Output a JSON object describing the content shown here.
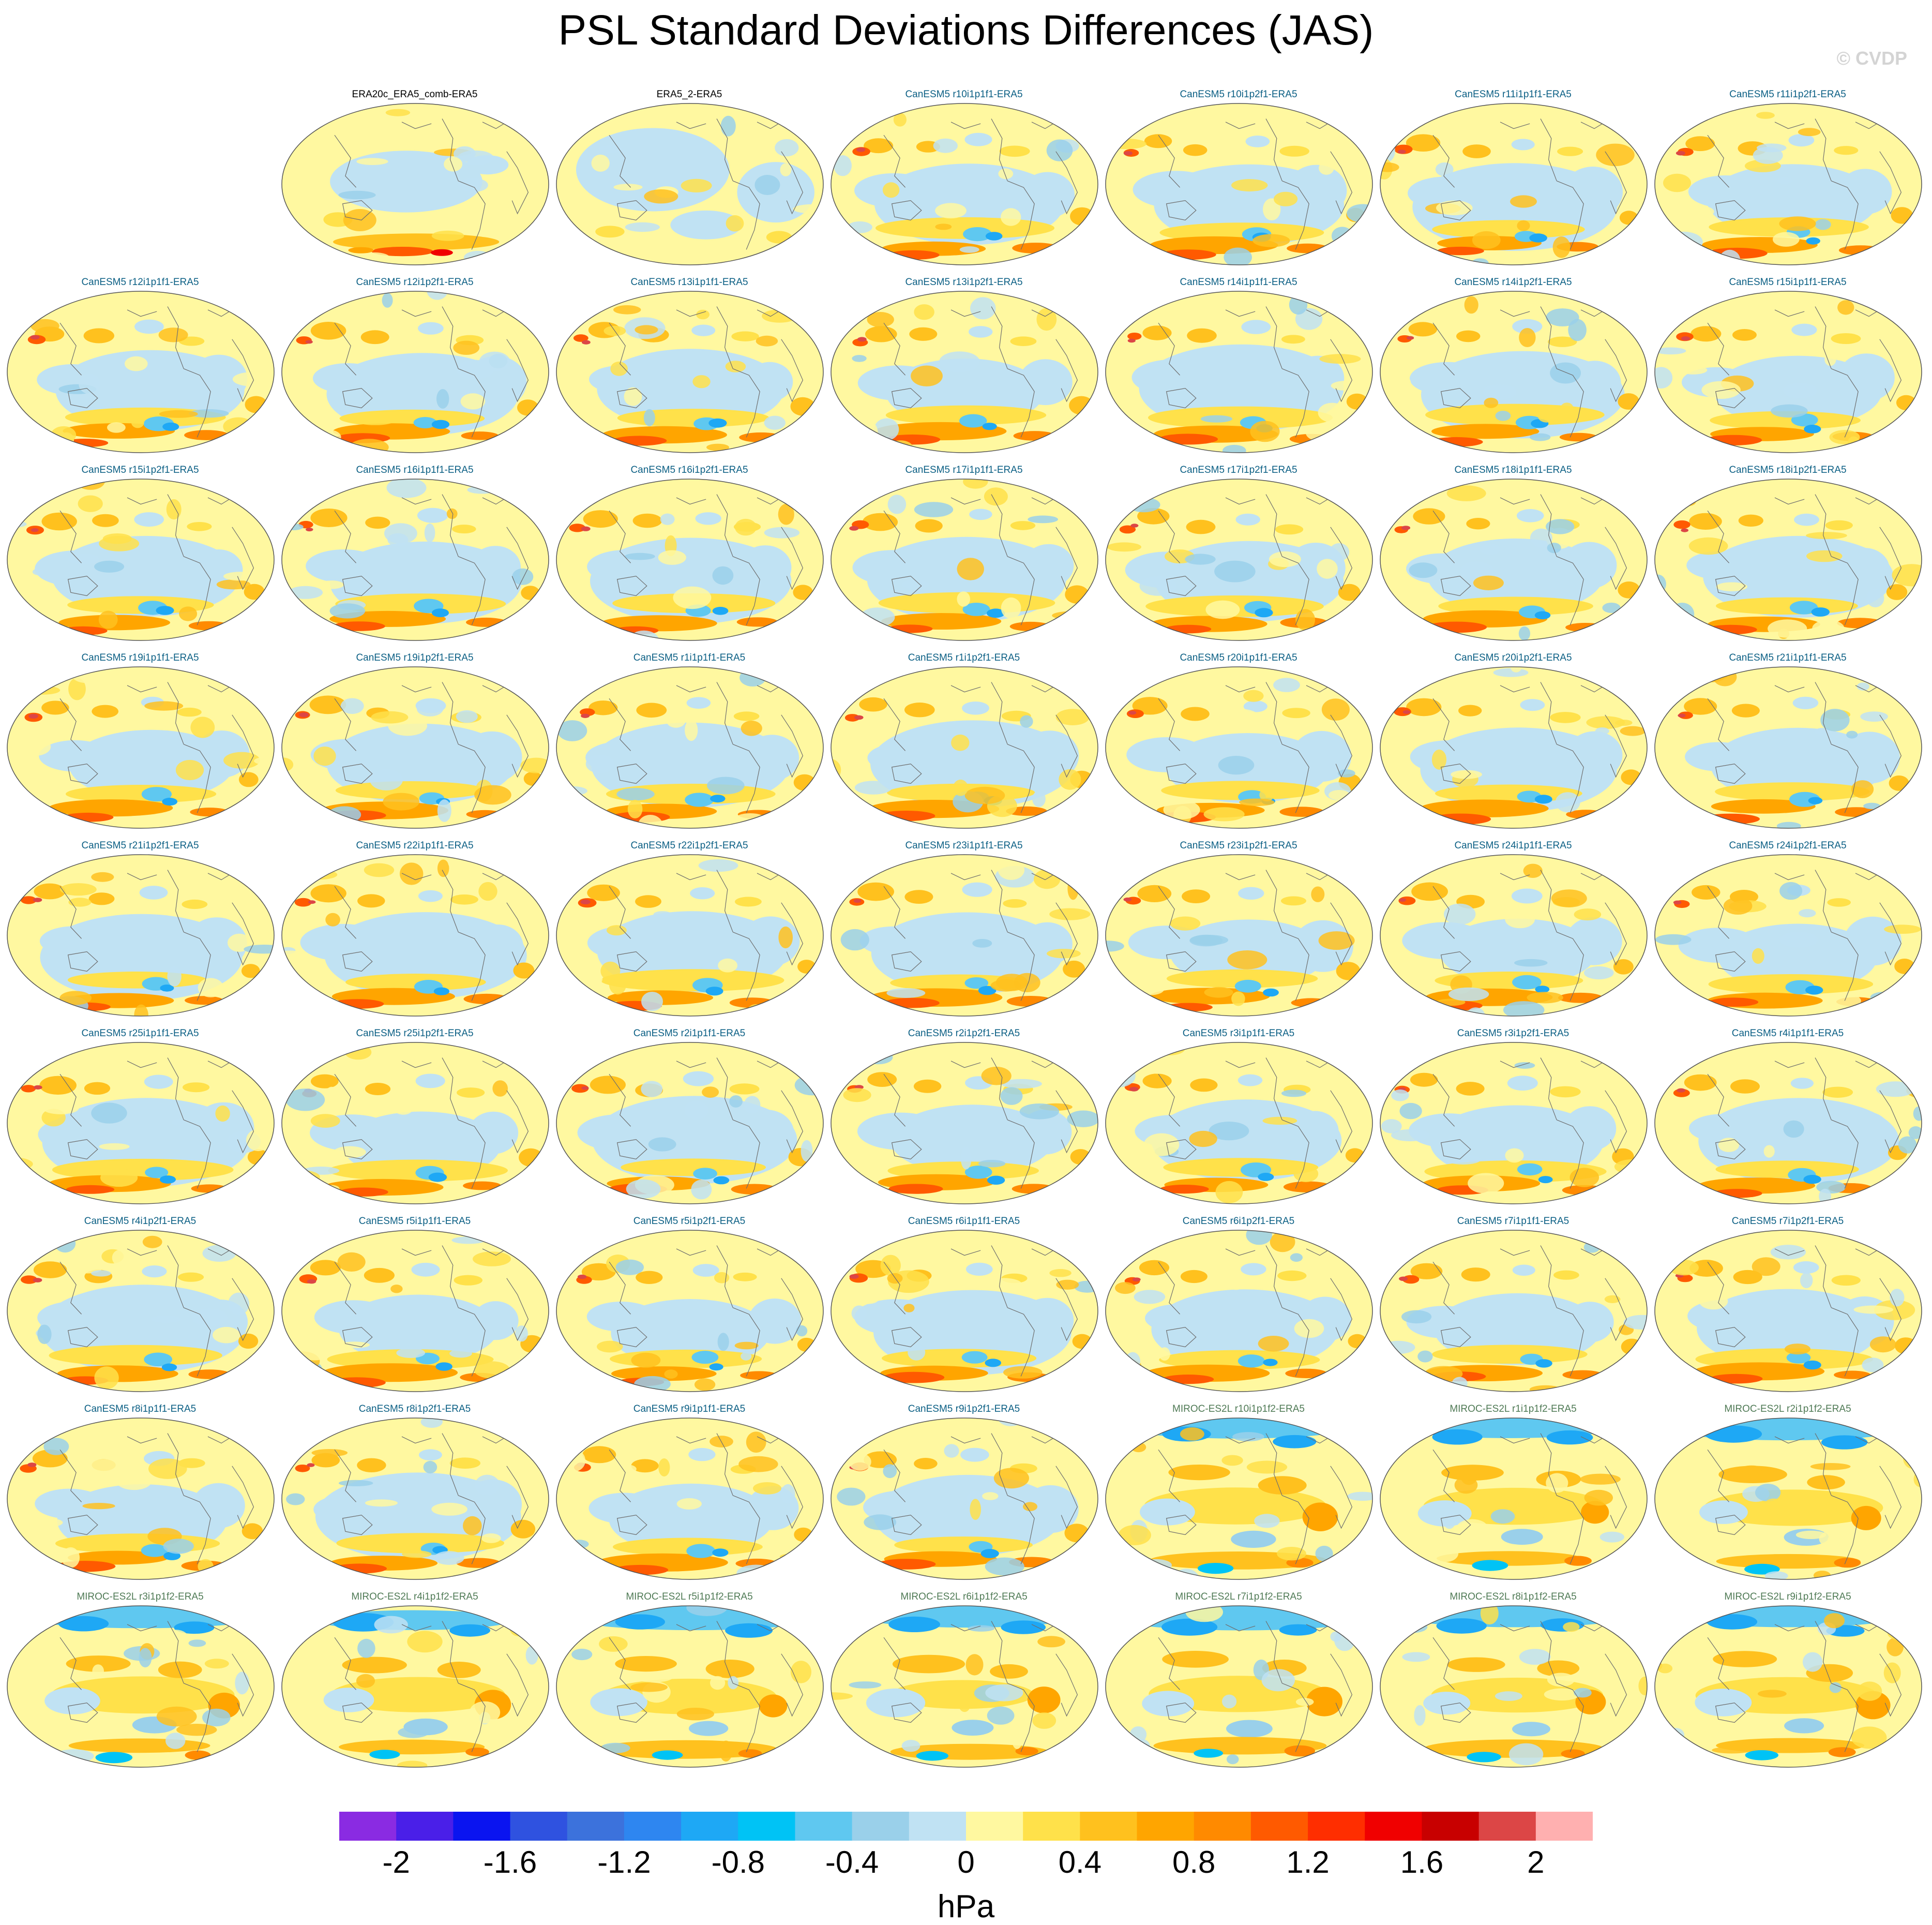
{
  "title": "PSL Standard Deviations Differences (JAS)",
  "credit": "© CVDP",
  "colors": {
    "obs_title": "#000000",
    "canesm_title": "#0b5f84",
    "miroc_title": "#4f7a55",
    "map_outline": "#555555",
    "coastline": "#6e6e6e"
  },
  "panels": [
    {
      "label": "ERA20c_ERA5_comb-ERA5",
      "group": "obs",
      "pattern": "era20c"
    },
    {
      "label": "ERA5_2-ERA5",
      "group": "obs",
      "pattern": "era5"
    },
    {
      "label": "CanESM5 r10i1p1f1-ERA5",
      "group": "canesm",
      "pattern": "canesm"
    },
    {
      "label": "CanESM5 r10i1p2f1-ERA5",
      "group": "canesm",
      "pattern": "canesm"
    },
    {
      "label": "CanESM5 r11i1p1f1-ERA5",
      "group": "canesm",
      "pattern": "canesm"
    },
    {
      "label": "CanESM5 r11i1p2f1-ERA5",
      "group": "canesm",
      "pattern": "canesm"
    },
    {
      "label": "CanESM5 r12i1p1f1-ERA5",
      "group": "canesm",
      "pattern": "canesm"
    },
    {
      "label": "CanESM5 r12i1p2f1-ERA5",
      "group": "canesm",
      "pattern": "canesm"
    },
    {
      "label": "CanESM5 r13i1p1f1-ERA5",
      "group": "canesm",
      "pattern": "canesm"
    },
    {
      "label": "CanESM5 r13i1p2f1-ERA5",
      "group": "canesm",
      "pattern": "canesm"
    },
    {
      "label": "CanESM5 r14i1p1f1-ERA5",
      "group": "canesm",
      "pattern": "canesm"
    },
    {
      "label": "CanESM5 r14i1p2f1-ERA5",
      "group": "canesm",
      "pattern": "canesm"
    },
    {
      "label": "CanESM5 r15i1p1f1-ERA5",
      "group": "canesm",
      "pattern": "canesm"
    },
    {
      "label": "CanESM5 r15i1p2f1-ERA5",
      "group": "canesm",
      "pattern": "canesm"
    },
    {
      "label": "CanESM5 r16i1p1f1-ERA5",
      "group": "canesm",
      "pattern": "canesm"
    },
    {
      "label": "CanESM5 r16i1p2f1-ERA5",
      "group": "canesm",
      "pattern": "canesm"
    },
    {
      "label": "CanESM5 r17i1p1f1-ERA5",
      "group": "canesm",
      "pattern": "canesm"
    },
    {
      "label": "CanESM5 r17i1p2f1-ERA5",
      "group": "canesm",
      "pattern": "canesm"
    },
    {
      "label": "CanESM5 r18i1p1f1-ERA5",
      "group": "canesm",
      "pattern": "canesm"
    },
    {
      "label": "CanESM5 r18i1p2f1-ERA5",
      "group": "canesm",
      "pattern": "canesm"
    },
    {
      "label": "CanESM5 r19i1p1f1-ERA5",
      "group": "canesm",
      "pattern": "canesm"
    },
    {
      "label": "CanESM5 r19i1p2f1-ERA5",
      "group": "canesm",
      "pattern": "canesm"
    },
    {
      "label": "CanESM5 r1i1p1f1-ERA5",
      "group": "canesm",
      "pattern": "canesm"
    },
    {
      "label": "CanESM5 r1i1p2f1-ERA5",
      "group": "canesm",
      "pattern": "canesm"
    },
    {
      "label": "CanESM5 r20i1p1f1-ERA5",
      "group": "canesm",
      "pattern": "canesm"
    },
    {
      "label": "CanESM5 r20i1p2f1-ERA5",
      "group": "canesm",
      "pattern": "canesm"
    },
    {
      "label": "CanESM5 r21i1p1f1-ERA5",
      "group": "canesm",
      "pattern": "canesm"
    },
    {
      "label": "CanESM5 r21i1p2f1-ERA5",
      "group": "canesm",
      "pattern": "canesm"
    },
    {
      "label": "CanESM5 r22i1p1f1-ERA5",
      "group": "canesm",
      "pattern": "canesm"
    },
    {
      "label": "CanESM5 r22i1p2f1-ERA5",
      "group": "canesm",
      "pattern": "canesm"
    },
    {
      "label": "CanESM5 r23i1p1f1-ERA5",
      "group": "canesm",
      "pattern": "canesm"
    },
    {
      "label": "CanESM5 r23i1p2f1-ERA5",
      "group": "canesm",
      "pattern": "canesm"
    },
    {
      "label": "CanESM5 r24i1p1f1-ERA5",
      "group": "canesm",
      "pattern": "canesm"
    },
    {
      "label": "CanESM5 r24i1p2f1-ERA5",
      "group": "canesm",
      "pattern": "canesm"
    },
    {
      "label": "CanESM5 r25i1p1f1-ERA5",
      "group": "canesm",
      "pattern": "canesm"
    },
    {
      "label": "CanESM5 r25i1p2f1-ERA5",
      "group": "canesm",
      "pattern": "canesm"
    },
    {
      "label": "CanESM5 r2i1p1f1-ERA5",
      "group": "canesm",
      "pattern": "canesm"
    },
    {
      "label": "CanESM5 r2i1p2f1-ERA5",
      "group": "canesm",
      "pattern": "canesm"
    },
    {
      "label": "CanESM5 r3i1p1f1-ERA5",
      "group": "canesm",
      "pattern": "canesm"
    },
    {
      "label": "CanESM5 r3i1p2f1-ERA5",
      "group": "canesm",
      "pattern": "canesm"
    },
    {
      "label": "CanESM5 r4i1p1f1-ERA5",
      "group": "canesm",
      "pattern": "canesm"
    },
    {
      "label": "CanESM5 r4i1p2f1-ERA5",
      "group": "canesm",
      "pattern": "canesm"
    },
    {
      "label": "CanESM5 r5i1p1f1-ERA5",
      "group": "canesm",
      "pattern": "canesm"
    },
    {
      "label": "CanESM5 r5i1p2f1-ERA5",
      "group": "canesm",
      "pattern": "canesm"
    },
    {
      "label": "CanESM5 r6i1p1f1-ERA5",
      "group": "canesm",
      "pattern": "canesm"
    },
    {
      "label": "CanESM5 r6i1p2f1-ERA5",
      "group": "canesm",
      "pattern": "canesm"
    },
    {
      "label": "CanESM5 r7i1p1f1-ERA5",
      "group": "canesm",
      "pattern": "canesm"
    },
    {
      "label": "CanESM5 r7i1p2f1-ERA5",
      "group": "canesm",
      "pattern": "canesm"
    },
    {
      "label": "CanESM5 r8i1p1f1-ERA5",
      "group": "canesm",
      "pattern": "canesm"
    },
    {
      "label": "CanESM5 r8i1p2f1-ERA5",
      "group": "canesm",
      "pattern": "canesm"
    },
    {
      "label": "CanESM5 r9i1p1f1-ERA5",
      "group": "canesm",
      "pattern": "canesm"
    },
    {
      "label": "CanESM5 r9i1p2f1-ERA5",
      "group": "canesm",
      "pattern": "canesm"
    },
    {
      "label": "MIROC-ES2L r10i1p1f2-ERA5",
      "group": "miroc",
      "pattern": "miroc"
    },
    {
      "label": "MIROC-ES2L r1i1p1f2-ERA5",
      "group": "miroc",
      "pattern": "miroc"
    },
    {
      "label": "MIROC-ES2L r2i1p1f2-ERA5",
      "group": "miroc",
      "pattern": "miroc"
    },
    {
      "label": "MIROC-ES2L r3i1p1f2-ERA5",
      "group": "miroc",
      "pattern": "miroc"
    },
    {
      "label": "MIROC-ES2L r4i1p1f2-ERA5",
      "group": "miroc",
      "pattern": "miroc"
    },
    {
      "label": "MIROC-ES2L r5i1p1f2-ERA5",
      "group": "miroc",
      "pattern": "miroc"
    },
    {
      "label": "MIROC-ES2L r6i1p1f2-ERA5",
      "group": "miroc",
      "pattern": "miroc"
    },
    {
      "label": "MIROC-ES2L r7i1p1f2-ERA5",
      "group": "miroc",
      "pattern": "miroc"
    },
    {
      "label": "MIROC-ES2L r8i1p1f2-ERA5",
      "group": "miroc",
      "pattern": "miroc"
    },
    {
      "label": "MIROC-ES2L r9i1p1f2-ERA5",
      "group": "miroc",
      "pattern": "miroc"
    }
  ],
  "colorbar": {
    "unit": "hPa",
    "colors": [
      "#8a2be2",
      "#4a1fe8",
      "#0a14f0",
      "#2f52e0",
      "#3c72dc",
      "#2e86f0",
      "#1ea8f5",
      "#00c3f5",
      "#5fc8f0",
      "#9ad0ea",
      "#c0e2f3",
      "#fff8a0",
      "#ffe14a",
      "#ffc11e",
      "#ffa500",
      "#ff8a00",
      "#ff5a00",
      "#ff2e00",
      "#f00000",
      "#c80000",
      "#dc4646",
      "#ffb0b0"
    ],
    "tick_values": [
      -2,
      -1.6,
      -1.2,
      -0.8,
      -0.4,
      0,
      0.4,
      0.8,
      1.2,
      1.6,
      2
    ],
    "tick_labels": [
      "-2",
      "-1.6",
      "-1.2",
      "-0.8",
      "-0.4",
      "0",
      "0.4",
      "0.8",
      "1.2",
      "1.6",
      "2"
    ]
  }
}
